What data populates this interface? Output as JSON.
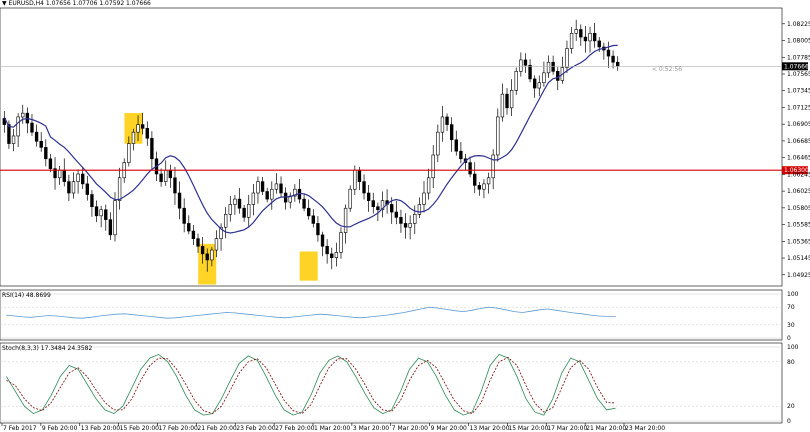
{
  "header": {
    "symbol_label": "EURUSD,H4",
    "ohlc_text": "1.07656 1.07706 1.07592 1.07666"
  },
  "colors": {
    "candle": "#000000",
    "ma_line": "#2e3192",
    "support_line": "#d40000",
    "highlight": "#ffcc00",
    "rsi_line": "#5b9bd5",
    "stoch_main": "#2e8b57",
    "stoch_signal": "#7a0000",
    "grid": "#c8c8c8"
  },
  "chart_data": [
    {
      "type": "candlestick",
      "title": "",
      "ylim": [
        1.0483,
        1.0838
      ],
      "y_ticks": [
        "1.08225",
        "1.08005",
        "1.07785",
        "1.07565",
        "1.07345",
        "1.07125",
        "1.06905",
        "1.06685",
        "1.06465",
        "1.06245",
        "1.06025",
        "1.05805",
        "1.05585",
        "1.05365",
        "1.05145",
        "1.04925"
      ],
      "x_ticks": [
        "7 Feb 2017",
        "9 Feb 20:00",
        "13 Feb 20:00",
        "15 Feb 20:00",
        "17 Feb 20:00",
        "21 Feb 20:00",
        "23 Feb 20:00",
        "27 Feb 20:00",
        "1 Mar 20:00",
        "3 Mar 20:00",
        "7 Mar 20:00",
        "9 Mar 20:00",
        "13 Mar 20:00",
        "15 Mar 20:00",
        "17 Mar 20:00",
        "21 Mar 20:00",
        "23 Mar 20:00"
      ],
      "horizontal_line": {
        "value": 1.063,
        "label": "1.06300"
      },
      "current_price": {
        "value": 1.07666,
        "label": "1.07666"
      },
      "countdown_text": "< 0:52:56",
      "close_series": [
        1.069,
        1.0665,
        1.0675,
        1.07,
        1.0705,
        1.0692,
        1.068,
        1.0668,
        1.066,
        1.0645,
        1.0632,
        1.062,
        1.063,
        1.0615,
        1.06,
        1.0615,
        1.0625,
        1.0612,
        1.0598,
        1.0582,
        1.057,
        1.0578,
        1.0565,
        1.0545,
        1.059,
        1.062,
        1.064,
        1.0665,
        1.068,
        1.069,
        1.0685,
        1.0672,
        1.0645,
        1.0625,
        1.0615,
        1.063,
        1.062,
        1.06,
        1.058,
        1.056,
        1.055,
        1.054,
        1.053,
        1.052,
        1.0512,
        1.0525,
        1.054,
        1.0555,
        1.0572,
        1.0585,
        1.0592,
        1.058,
        1.0568,
        1.0585,
        1.06,
        1.0615,
        1.0602,
        1.0592,
        1.0605,
        1.0612,
        1.06,
        1.0588,
        1.0596,
        1.0605,
        1.0592,
        1.058,
        1.057,
        1.056,
        1.0545,
        1.053,
        1.052,
        1.0515,
        1.0522,
        1.0548,
        1.058,
        1.0605,
        1.063,
        1.0615,
        1.06,
        1.059,
        1.0582,
        1.0578,
        1.059,
        1.0585,
        1.0575,
        1.0568,
        1.056,
        1.0555,
        1.056,
        1.0572,
        1.0585,
        1.06,
        1.062,
        1.065,
        1.068,
        1.07,
        1.069,
        1.067,
        1.0655,
        1.0645,
        1.064,
        1.0625,
        1.061,
        1.0605,
        1.0612,
        1.062,
        1.065,
        1.07,
        1.073,
        1.0712,
        1.0735,
        1.076,
        1.0775,
        1.0768,
        1.075,
        1.0738,
        1.0745,
        1.0758,
        1.0772,
        1.076,
        1.0748,
        1.0765,
        1.079,
        1.081,
        1.0815,
        1.0805,
        1.08,
        1.081,
        1.08,
        1.0792,
        1.0788,
        1.078,
        1.0772,
        1.07666
      ],
      "rsi": {
        "label": "RSI(14) 48.8699",
        "levels": [
          100,
          70,
          30,
          0
        ],
        "values": [
          52,
          50,
          48,
          47,
          49,
          51,
          50,
          48,
          46,
          45,
          47,
          50,
          52,
          54,
          55,
          53,
          51,
          49,
          47,
          45,
          46,
          48,
          50,
          52,
          54,
          56,
          58,
          57,
          55,
          53,
          51,
          49,
          47,
          46,
          48,
          50,
          52,
          54,
          53,
          51,
          49,
          47,
          46,
          48,
          50,
          52,
          55,
          58,
          62,
          66,
          70,
          68,
          65,
          62,
          60,
          63,
          67,
          70,
          68,
          64,
          60,
          58,
          61,
          64,
          66,
          63,
          60,
          57,
          55,
          52,
          50,
          49,
          48.87
        ]
      },
      "stoch": {
        "label": "Stoch(8,3,3) 17.3484 24.3582",
        "levels": [
          100,
          80,
          20,
          0
        ],
        "main": [
          60,
          40,
          20,
          10,
          15,
          35,
          60,
          75,
          70,
          50,
          30,
          15,
          10,
          20,
          45,
          70,
          85,
          90,
          80,
          60,
          35,
          15,
          8,
          10,
          30,
          55,
          78,
          88,
          82,
          60,
          35,
          15,
          8,
          12,
          35,
          65,
          82,
          88,
          80,
          60,
          38,
          18,
          10,
          15,
          40,
          70,
          85,
          80,
          60,
          35,
          15,
          8,
          12,
          40,
          75,
          90,
          85,
          60,
          30,
          12,
          8,
          30,
          65,
          85,
          80,
          55,
          30,
          15,
          17.35
        ],
        "signal": [
          55,
          48,
          30,
          18,
          14,
          25,
          45,
          65,
          72,
          60,
          42,
          25,
          15,
          15,
          30,
          55,
          75,
          85,
          84,
          70,
          50,
          28,
          14,
          10,
          20,
          42,
          65,
          80,
          84,
          72,
          50,
          28,
          14,
          10,
          22,
          48,
          72,
          84,
          84,
          70,
          50,
          28,
          15,
          13,
          28,
          55,
          75,
          82,
          72,
          50,
          28,
          14,
          10,
          25,
          55,
          80,
          86,
          75,
          48,
          24,
          12,
          18,
          45,
          72,
          82,
          70,
          45,
          25,
          24.36
        ]
      }
    }
  ]
}
